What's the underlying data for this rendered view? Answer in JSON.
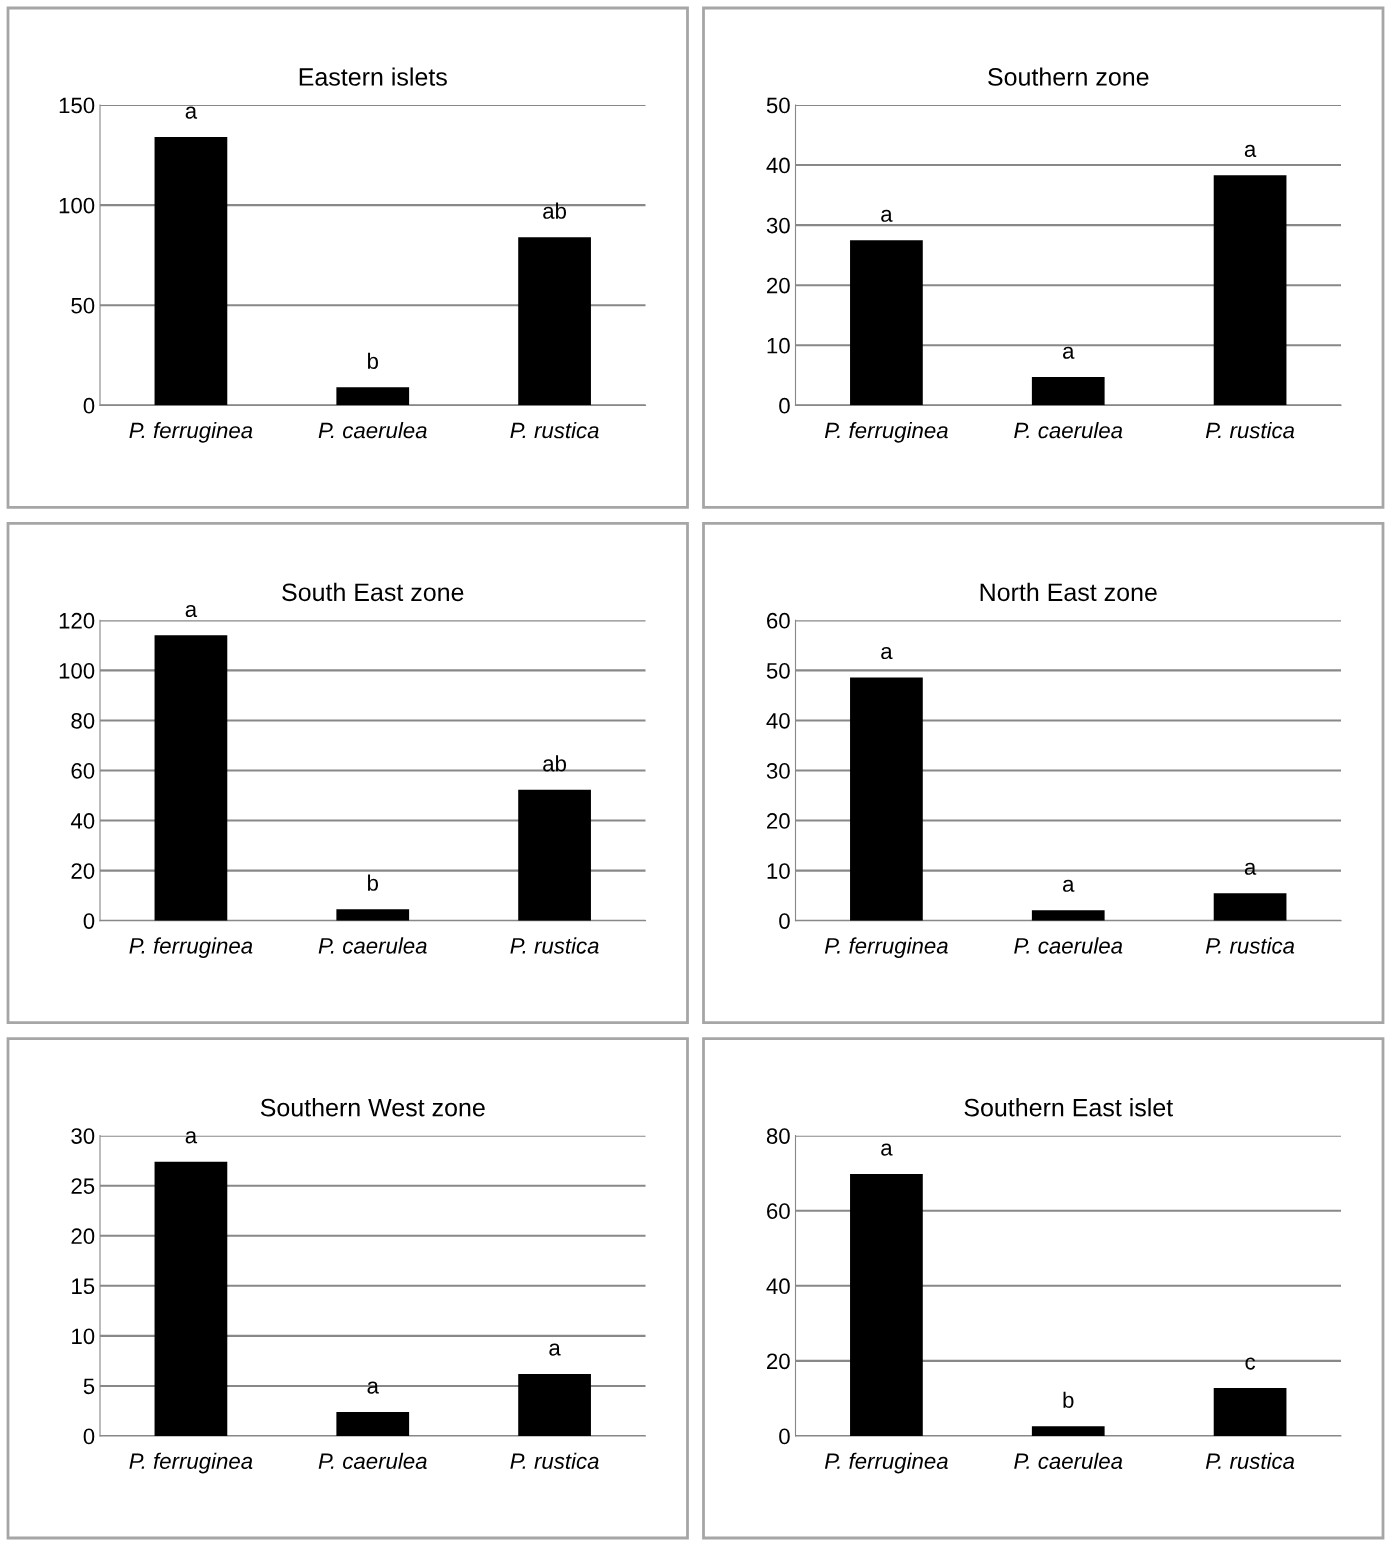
{
  "chart_data": [
    {
      "type": "bar",
      "title": "Eastern islets",
      "categories": [
        "P. ferruginea",
        "P. caerulea",
        "P. rustica"
      ],
      "values": [
        134,
        9,
        84
      ],
      "color": "#000000",
      "ylim": [
        0,
        150
      ],
      "yticks": [
        0,
        50,
        100,
        150
      ],
      "grid": "y",
      "annotations": [
        {
          "text": "a",
          "x": "P. ferruginea",
          "y": 134
        },
        {
          "text": "b",
          "x": "P. caerulea",
          "y": 9
        },
        {
          "text": "ab",
          "x": "P. rustica",
          "y": 84
        }
      ]
    },
    {
      "type": "bar",
      "title": "Southern zone",
      "categories": [
        "P. ferruginea",
        "P. caerulea",
        "P. rustica"
      ],
      "values": [
        27.5,
        4.7,
        38.3
      ],
      "color": "#000000",
      "ylim": [
        0,
        50
      ],
      "yticks": [
        0,
        10,
        20,
        30,
        40,
        50
      ],
      "grid": "y",
      "annotations": [
        {
          "text": "a",
          "x": "P. ferruginea",
          "y": 27.5
        },
        {
          "text": "a",
          "x": "P. caerulea",
          "y": 4.7
        },
        {
          "text": "a",
          "x": "P. rustica",
          "y": 38.3
        }
      ]
    },
    {
      "type": "bar",
      "title": "South East zone",
      "categories": [
        "P. ferruginea",
        "P. caerulea",
        "P. rustica"
      ],
      "values": [
        114,
        4.6,
        52.3
      ],
      "color": "#000000",
      "ylim": [
        0,
        120
      ],
      "yticks": [
        0,
        20,
        40,
        60,
        80,
        100,
        120
      ],
      "grid": "y",
      "annotations": [
        {
          "text": "a",
          "x": "P. ferruginea",
          "y": 114
        },
        {
          "text": "b",
          "x": "P. caerulea",
          "y": 4.6
        },
        {
          "text": "ab",
          "x": "P. rustica",
          "y": 52.3
        }
      ]
    },
    {
      "type": "bar",
      "title": "North East zone",
      "categories": [
        "P. ferruginea",
        "P. caerulea",
        "P. rustica"
      ],
      "values": [
        48.6,
        2.1,
        5.5
      ],
      "color": "#000000",
      "ylim": [
        0,
        60
      ],
      "yticks": [
        0,
        10,
        20,
        30,
        40,
        50,
        60
      ],
      "grid": "y",
      "annotations": [
        {
          "text": "a",
          "x": "P. ferruginea",
          "y": 48.6
        },
        {
          "text": "a",
          "x": "P. caerulea",
          "y": 2.1
        },
        {
          "text": "a",
          "x": "P. rustica",
          "y": 5.5
        }
      ]
    },
    {
      "type": "bar",
      "title": "Southern West zone",
      "categories": [
        "P. ferruginea",
        "P. caerulea",
        "P. rustica"
      ],
      "values": [
        27.4,
        2.4,
        6.2
      ],
      "color": "#000000",
      "ylim": [
        0,
        30
      ],
      "yticks": [
        0,
        5,
        10,
        15,
        20,
        25,
        30
      ],
      "grid": "y",
      "annotations": [
        {
          "text": "a",
          "x": "P. ferruginea",
          "y": 27.4
        },
        {
          "text": "a",
          "x": "P. caerulea",
          "y": 2.4
        },
        {
          "text": "a",
          "x": "P. rustica",
          "y": 6.2
        }
      ]
    },
    {
      "type": "bar",
      "title": "Southern East islet",
      "categories": [
        "P. ferruginea",
        "P. caerulea",
        "P. rustica"
      ],
      "values": [
        69.8,
        2.6,
        12.8
      ],
      "color": "#000000",
      "ylim": [
        0,
        80
      ],
      "yticks": [
        0,
        20,
        40,
        60,
        80
      ],
      "grid": "y",
      "annotations": [
        {
          "text": "a",
          "x": "P. ferruginea",
          "y": 69.8
        },
        {
          "text": "b",
          "x": "P. caerulea",
          "y": 2.6
        },
        {
          "text": "c",
          "x": "P. rustica",
          "y": 12.8
        }
      ]
    }
  ]
}
